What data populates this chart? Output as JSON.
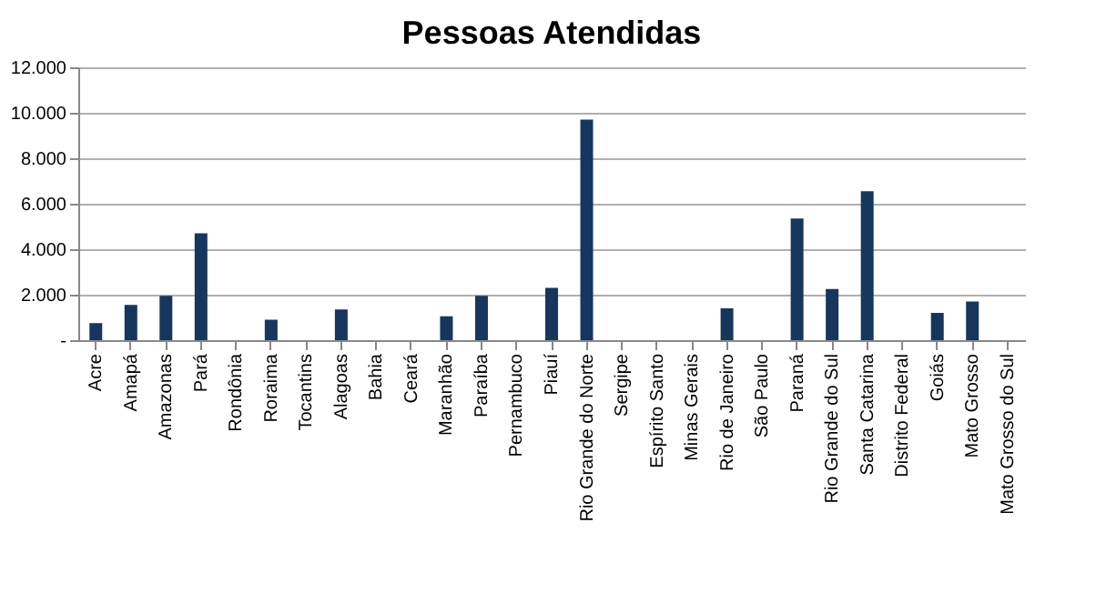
{
  "chart_data": {
    "type": "bar",
    "title": "Pessoas Atendidas",
    "categories": [
      "Acre",
      "Amapá",
      "Amazonas",
      "Pará",
      "Rondônia",
      "Roraima",
      "Tocantins",
      "Alagoas",
      "Bahia",
      "Ceará",
      "Maranhão",
      "Paraíba",
      "Pernambuco",
      "Piauí",
      "Rio Grande do Norte",
      "Sergipe",
      "Espírito Santo",
      "Minas Gerais",
      "Rio de Janeiro",
      "São Paulo",
      "Paraná",
      "Rio Grande do Sul",
      "Santa Catarina",
      "Distrito Federal",
      "Goiás",
      "Mato Grosso",
      "Mato Grosso do Sul"
    ],
    "values": [
      750,
      1550,
      1950,
      4700,
      0,
      900,
      0,
      1350,
      0,
      0,
      1050,
      1950,
      0,
      2300,
      9700,
      0,
      0,
      0,
      1400,
      0,
      5350,
      2250,
      6550,
      0,
      1200,
      1700,
      0
    ],
    "color": "#17365d",
    "ylim": [
      0,
      12000
    ],
    "yticks": [
      {
        "value": 0,
        "label": "-"
      },
      {
        "value": 2000,
        "label": "2.000"
      },
      {
        "value": 4000,
        "label": "4.000"
      },
      {
        "value": 6000,
        "label": "6.000"
      },
      {
        "value": 8000,
        "label": "8.000"
      },
      {
        "value": 10000,
        "label": "10.000"
      },
      {
        "value": 12000,
        "label": "12.000"
      }
    ],
    "grid": "y"
  }
}
